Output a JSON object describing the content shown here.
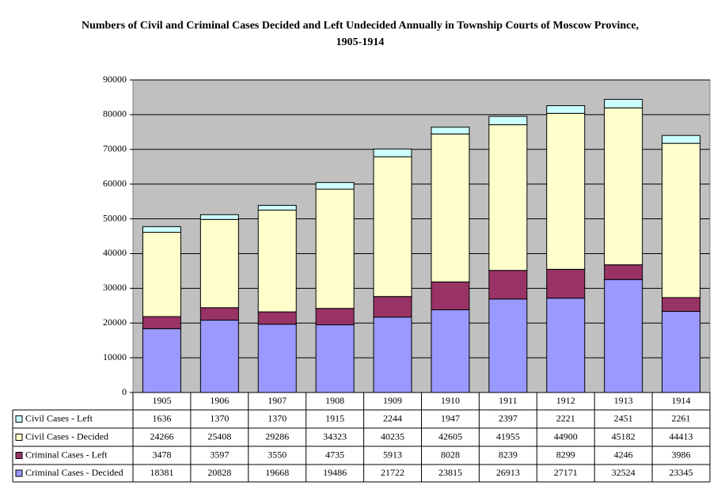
{
  "chart_data": {
    "type": "stacked_bar",
    "title": "Numbers of Civil and Criminal Cases Decided and Left Undecided Annually in Township Courts of Moscow Province, 1905-1914",
    "categories": [
      "1905",
      "1906",
      "1907",
      "1908",
      "1909",
      "1910",
      "1911",
      "1912",
      "1913",
      "1914"
    ],
    "series": [
      {
        "name": "Civil Cases - Left",
        "color": "#ccffff",
        "values": [
          1636,
          1370,
          1370,
          1915,
          2244,
          1947,
          2397,
          2221,
          2451,
          2261
        ]
      },
      {
        "name": "Civil Cases - Decided",
        "color": "#ffffcc",
        "values": [
          24266,
          25408,
          29286,
          34323,
          40235,
          42605,
          41955,
          44900,
          45182,
          44413
        ]
      },
      {
        "name": "Criminal Cases - Left",
        "color": "#993366",
        "values": [
          3478,
          3597,
          3550,
          4735,
          5913,
          8028,
          8239,
          8299,
          4246,
          3986
        ]
      },
      {
        "name": "Criminal Cases - Decided",
        "color": "#9999ff",
        "values": [
          18381,
          20828,
          19668,
          19486,
          21722,
          23815,
          26913,
          27171,
          32524,
          23345
        ]
      }
    ],
    "ylim": [
      0,
      90000
    ],
    "yticks": [
      0,
      10000,
      20000,
      30000,
      40000,
      50000,
      60000,
      70000,
      80000,
      90000
    ],
    "grid": true,
    "plot_background": "#c0c0c0"
  }
}
